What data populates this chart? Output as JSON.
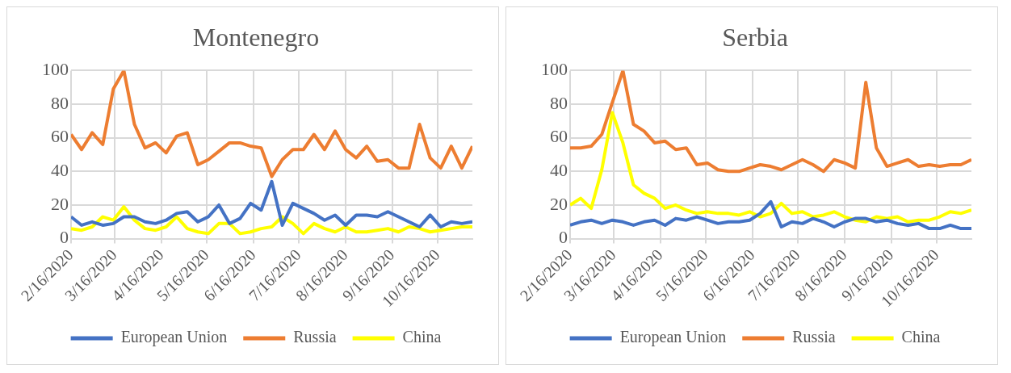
{
  "chart_data": [
    {
      "type": "line",
      "title": "Montenegro",
      "x": [
        "2020-02-16",
        "2020-02-23",
        "2020-03-01",
        "2020-03-08",
        "2020-03-15",
        "2020-03-22",
        "2020-03-29",
        "2020-04-05",
        "2020-04-12",
        "2020-04-19",
        "2020-04-26",
        "2020-05-03",
        "2020-05-10",
        "2020-05-17",
        "2020-05-24",
        "2020-05-31",
        "2020-06-07",
        "2020-06-14",
        "2020-06-21",
        "2020-06-28",
        "2020-07-05",
        "2020-07-12",
        "2020-07-19",
        "2020-07-26",
        "2020-08-02",
        "2020-08-09",
        "2020-08-16",
        "2020-08-23",
        "2020-08-30",
        "2020-09-06",
        "2020-09-13",
        "2020-09-20",
        "2020-09-27",
        "2020-10-04",
        "2020-10-11",
        "2020-10-18",
        "2020-10-25",
        "2020-11-01",
        "2020-11-08"
      ],
      "series": [
        {
          "name": "European Union",
          "color": "#4472c4",
          "values": [
            13,
            8,
            10,
            8,
            9,
            13,
            13,
            10,
            9,
            11,
            15,
            16,
            10,
            13,
            20,
            9,
            12,
            21,
            17,
            34,
            8,
            21,
            18,
            15,
            11,
            14,
            8,
            14,
            14,
            13,
            16,
            13,
            10,
            7,
            14,
            7,
            10,
            9,
            10
          ]
        },
        {
          "name": "Russia",
          "color": "#ed7d31",
          "values": [
            62,
            53,
            63,
            56,
            89,
            100,
            68,
            54,
            57,
            51,
            61,
            63,
            44,
            47,
            52,
            57,
            57,
            55,
            54,
            37,
            47,
            53,
            53,
            62,
            53,
            64,
            53,
            48,
            55,
            46,
            47,
            42,
            42,
            68,
            48,
            42,
            55,
            42,
            55
          ]
        },
        {
          "name": "China",
          "color": "#ffff00",
          "values": [
            6,
            5,
            7,
            13,
            11,
            19,
            11,
            6,
            5,
            7,
            13,
            6,
            4,
            3,
            9,
            9,
            3,
            4,
            6,
            7,
            13,
            9,
            3,
            9,
            6,
            4,
            7,
            4,
            4,
            5,
            6,
            4,
            7,
            6,
            4,
            5,
            6,
            7,
            7
          ]
        }
      ],
      "xlim": [
        "2020-02-16",
        "2020-11-08"
      ],
      "xticks": [
        {
          "value": "2020-02-16",
          "label": "2/16/2020"
        },
        {
          "value": "2020-03-16",
          "label": "3/16/2020"
        },
        {
          "value": "2020-04-16",
          "label": "4/16/2020"
        },
        {
          "value": "2020-05-16",
          "label": "5/16/2020"
        },
        {
          "value": "2020-06-16",
          "label": "6/16/2020"
        },
        {
          "value": "2020-07-16",
          "label": "7/16/2020"
        },
        {
          "value": "2020-08-16",
          "label": "8/16/2020"
        },
        {
          "value": "2020-09-16",
          "label": "9/16/2020"
        },
        {
          "value": "2020-10-16",
          "label": "10/16/2020"
        }
      ],
      "ylim": [
        0,
        100
      ],
      "yticks": [
        0,
        20,
        40,
        60,
        80,
        100
      ],
      "grid": true,
      "legend": "bottom",
      "marker": "none"
    },
    {
      "type": "line",
      "title": "Serbia",
      "x": [
        "2020-02-16",
        "2020-02-23",
        "2020-03-01",
        "2020-03-08",
        "2020-03-15",
        "2020-03-22",
        "2020-03-29",
        "2020-04-05",
        "2020-04-12",
        "2020-04-19",
        "2020-04-26",
        "2020-05-03",
        "2020-05-10",
        "2020-05-17",
        "2020-05-24",
        "2020-05-31",
        "2020-06-07",
        "2020-06-14",
        "2020-06-21",
        "2020-06-28",
        "2020-07-05",
        "2020-07-12",
        "2020-07-19",
        "2020-07-26",
        "2020-08-02",
        "2020-08-09",
        "2020-08-16",
        "2020-08-23",
        "2020-08-30",
        "2020-09-06",
        "2020-09-13",
        "2020-09-20",
        "2020-09-27",
        "2020-10-04",
        "2020-10-11",
        "2020-10-18",
        "2020-10-25",
        "2020-11-01",
        "2020-11-08"
      ],
      "series": [
        {
          "name": "European Union",
          "color": "#4472c4",
          "values": [
            8,
            10,
            11,
            9,
            11,
            10,
            8,
            10,
            11,
            8,
            12,
            11,
            13,
            11,
            9,
            10,
            10,
            11,
            15,
            22,
            7,
            10,
            9,
            12,
            10,
            7,
            10,
            12,
            12,
            10,
            11,
            9,
            8,
            9,
            6,
            6,
            8,
            6,
            6
          ]
        },
        {
          "name": "Russia",
          "color": "#ed7d31",
          "values": [
            54,
            54,
            55,
            62,
            81,
            100,
            68,
            64,
            57,
            58,
            53,
            54,
            44,
            45,
            41,
            40,
            40,
            42,
            44,
            43,
            41,
            44,
            47,
            44,
            40,
            47,
            45,
            42,
            93,
            54,
            43,
            45,
            47,
            43,
            44,
            43,
            44,
            44,
            47
          ]
        },
        {
          "name": "China",
          "color": "#ffff00",
          "values": [
            20,
            24,
            18,
            41,
            75,
            57,
            32,
            27,
            24,
            18,
            20,
            17,
            15,
            16,
            15,
            15,
            14,
            16,
            13,
            15,
            21,
            15,
            16,
            13,
            14,
            16,
            13,
            11,
            10,
            13,
            12,
            13,
            10,
            11,
            11,
            13,
            16,
            15,
            17
          ]
        }
      ],
      "xlim": [
        "2020-02-16",
        "2020-11-08"
      ],
      "xticks": [
        {
          "value": "2020-02-16",
          "label": "2/16/2020"
        },
        {
          "value": "2020-03-16",
          "label": "3/16/2020"
        },
        {
          "value": "2020-04-16",
          "label": "4/16/2020"
        },
        {
          "value": "2020-05-16",
          "label": "5/16/2020"
        },
        {
          "value": "2020-06-16",
          "label": "6/16/2020"
        },
        {
          "value": "2020-07-16",
          "label": "7/16/2020"
        },
        {
          "value": "2020-08-16",
          "label": "8/16/2020"
        },
        {
          "value": "2020-09-16",
          "label": "9/16/2020"
        },
        {
          "value": "2020-10-16",
          "label": "10/16/2020"
        }
      ],
      "ylim": [
        0,
        100
      ],
      "yticks": [
        0,
        20,
        40,
        60,
        80,
        100
      ],
      "grid": true,
      "legend": "bottom",
      "marker": "none"
    }
  ]
}
